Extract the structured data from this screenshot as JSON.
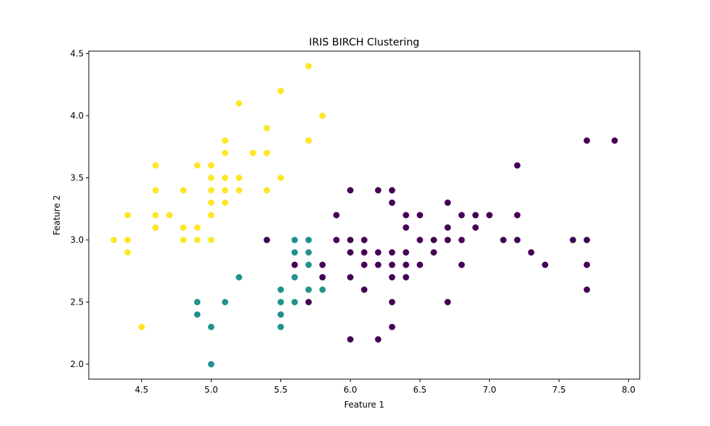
{
  "chart_data": {
    "type": "scatter",
    "title": "IRIS BIRCH Clustering",
    "xlabel": "Feature 1",
    "ylabel": "Feature 2",
    "xlim": [
      4.12,
      8.08
    ],
    "ylim": [
      1.88,
      4.52
    ],
    "xticks": [
      "4.5",
      "5.0",
      "5.5",
      "6.0",
      "6.5",
      "7.0",
      "7.5",
      "8.0"
    ],
    "yticks": [
      "2.0",
      "2.5",
      "3.0",
      "3.5",
      "4.0",
      "4.5"
    ],
    "grid": false,
    "legend": "none",
    "colors": [
      "#440154",
      "#21918c",
      "#fde725"
    ],
    "series": [
      {
        "color": "#fde725",
        "points": [
          [
            4.3,
            3.0
          ],
          [
            4.4,
            2.9
          ],
          [
            4.4,
            3.0
          ],
          [
            4.4,
            3.2
          ],
          [
            4.5,
            2.3
          ],
          [
            4.6,
            3.1
          ],
          [
            4.6,
            3.2
          ],
          [
            4.6,
            3.4
          ],
          [
            4.6,
            3.6
          ],
          [
            4.7,
            3.2
          ],
          [
            4.8,
            3.0
          ],
          [
            4.8,
            3.1
          ],
          [
            4.8,
            3.4
          ],
          [
            4.9,
            3.0
          ],
          [
            4.9,
            3.1
          ],
          [
            4.9,
            3.6
          ],
          [
            5.0,
            3.0
          ],
          [
            5.0,
            3.2
          ],
          [
            5.0,
            3.3
          ],
          [
            5.0,
            3.4
          ],
          [
            5.0,
            3.5
          ],
          [
            5.0,
            3.6
          ],
          [
            5.1,
            3.3
          ],
          [
            5.1,
            3.4
          ],
          [
            5.1,
            3.5
          ],
          [
            5.1,
            3.7
          ],
          [
            5.1,
            3.8
          ],
          [
            5.2,
            3.4
          ],
          [
            5.2,
            3.5
          ],
          [
            5.2,
            4.1
          ],
          [
            5.3,
            3.7
          ],
          [
            5.4,
            3.4
          ],
          [
            5.4,
            3.7
          ],
          [
            5.4,
            3.9
          ],
          [
            5.5,
            3.5
          ],
          [
            5.5,
            4.2
          ],
          [
            5.7,
            3.8
          ],
          [
            5.7,
            4.4
          ],
          [
            5.8,
            4.0
          ]
        ]
      },
      {
        "color": "#21918c",
        "points": [
          [
            4.9,
            2.4
          ],
          [
            4.9,
            2.5
          ],
          [
            5.0,
            2.0
          ],
          [
            5.0,
            2.3
          ],
          [
            5.1,
            2.5
          ],
          [
            5.2,
            2.7
          ],
          [
            5.5,
            2.3
          ],
          [
            5.5,
            2.4
          ],
          [
            5.5,
            2.5
          ],
          [
            5.5,
            2.6
          ],
          [
            5.6,
            2.5
          ],
          [
            5.6,
            2.7
          ],
          [
            5.6,
            2.9
          ],
          [
            5.6,
            3.0
          ],
          [
            5.7,
            2.6
          ],
          [
            5.7,
            2.8
          ],
          [
            5.7,
            2.9
          ],
          [
            5.7,
            3.0
          ],
          [
            5.8,
            2.6
          ],
          [
            5.8,
            2.7
          ]
        ]
      },
      {
        "color": "#440154",
        "points": [
          [
            5.4,
            3.0
          ],
          [
            5.6,
            2.8
          ],
          [
            5.7,
            2.5
          ],
          [
            5.8,
            2.7
          ],
          [
            5.8,
            2.8
          ],
          [
            5.9,
            3.0
          ],
          [
            5.9,
            3.2
          ],
          [
            6.0,
            2.2
          ],
          [
            6.0,
            2.7
          ],
          [
            6.0,
            2.9
          ],
          [
            6.0,
            3.0
          ],
          [
            6.0,
            3.4
          ],
          [
            6.1,
            2.6
          ],
          [
            6.1,
            2.8
          ],
          [
            6.1,
            2.9
          ],
          [
            6.1,
            3.0
          ],
          [
            6.2,
            2.2
          ],
          [
            6.2,
            2.8
          ],
          [
            6.2,
            2.9
          ],
          [
            6.2,
            3.4
          ],
          [
            6.3,
            2.3
          ],
          [
            6.3,
            2.5
          ],
          [
            6.3,
            2.7
          ],
          [
            6.3,
            2.8
          ],
          [
            6.3,
            2.9
          ],
          [
            6.3,
            3.3
          ],
          [
            6.3,
            3.4
          ],
          [
            6.4,
            2.7
          ],
          [
            6.4,
            2.8
          ],
          [
            6.4,
            2.9
          ],
          [
            6.4,
            3.1
          ],
          [
            6.4,
            3.2
          ],
          [
            6.5,
            2.8
          ],
          [
            6.5,
            3.0
          ],
          [
            6.5,
            3.2
          ],
          [
            6.6,
            2.9
          ],
          [
            6.6,
            3.0
          ],
          [
            6.7,
            2.5
          ],
          [
            6.7,
            3.0
          ],
          [
            6.7,
            3.1
          ],
          [
            6.7,
            3.3
          ],
          [
            6.8,
            2.8
          ],
          [
            6.8,
            3.0
          ],
          [
            6.8,
            3.2
          ],
          [
            6.9,
            3.1
          ],
          [
            6.9,
            3.2
          ],
          [
            7.0,
            3.2
          ],
          [
            7.1,
            3.0
          ],
          [
            7.2,
            3.0
          ],
          [
            7.2,
            3.2
          ],
          [
            7.2,
            3.6
          ],
          [
            7.3,
            2.9
          ],
          [
            7.4,
            2.8
          ],
          [
            7.6,
            3.0
          ],
          [
            7.7,
            2.6
          ],
          [
            7.7,
            2.8
          ],
          [
            7.7,
            3.0
          ],
          [
            7.7,
            3.8
          ],
          [
            7.9,
            3.8
          ]
        ]
      }
    ]
  }
}
